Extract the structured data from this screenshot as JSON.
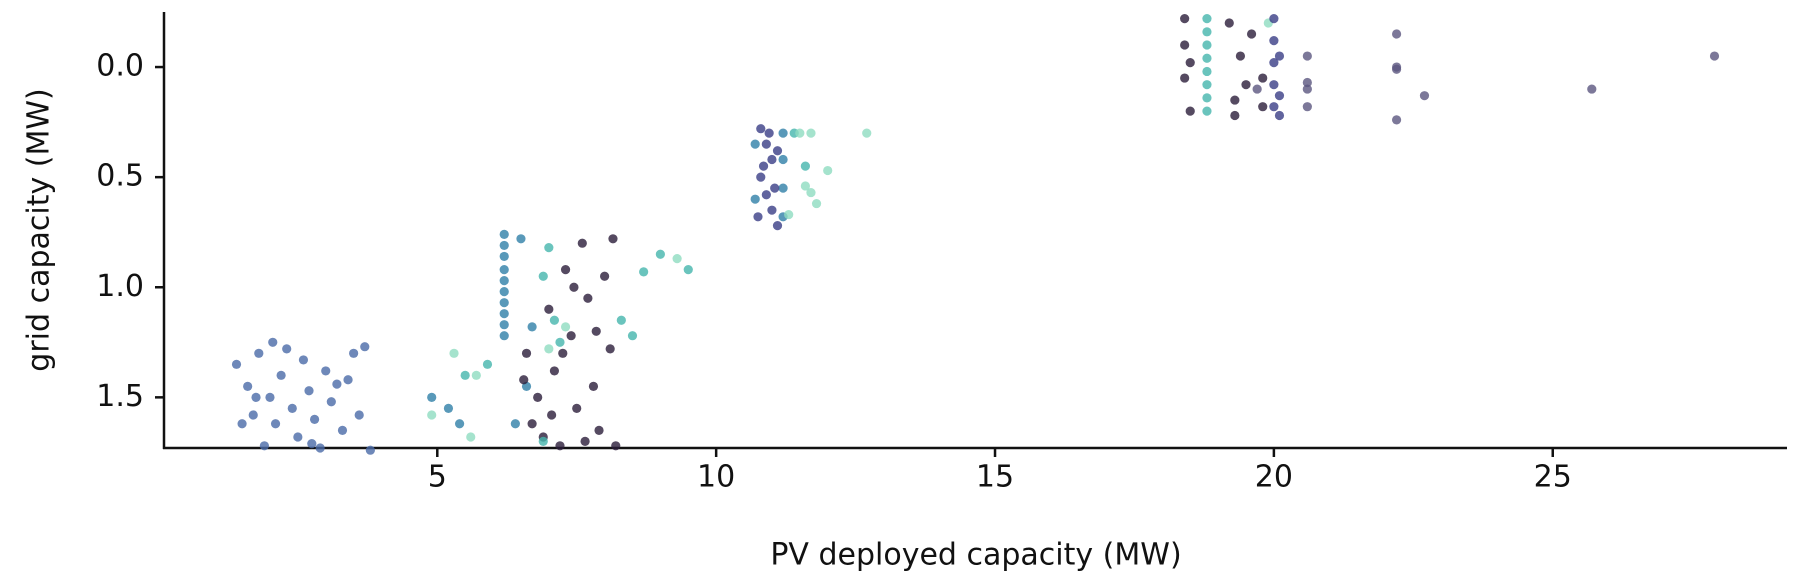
{
  "chart_data": {
    "type": "scatter",
    "xlabel": "PV deployed capacity (MW)",
    "ylabel": "grid capacity (MW)",
    "xlim": [
      0.1,
      29.2
    ],
    "xticks": [
      5,
      10,
      15,
      20,
      25
    ],
    "ylim": [
      -0.25,
      1.73
    ],
    "y_inverted": true,
    "yticks": [
      {
        "value": 0,
        "label": "0.0"
      },
      0.5,
      {
        "value": 1,
        "label": "1.0"
      },
      1.5
    ],
    "series": [
      {
        "color": "#4a6aa8",
        "x": [
          1.4,
          1.6,
          1.7,
          1.8,
          1.9,
          2.0,
          2.1,
          2.2,
          2.3,
          2.4,
          2.5,
          2.6,
          2.7,
          2.8,
          2.9,
          3.0,
          3.1,
          3.3,
          3.4,
          3.5,
          3.6,
          3.7,
          3.8,
          1.5,
          2.05,
          2.75,
          3.2,
          1.75
        ],
        "values": [
          1.35,
          1.45,
          1.58,
          1.3,
          1.72,
          1.5,
          1.62,
          1.4,
          1.28,
          1.55,
          1.68,
          1.33,
          1.47,
          1.6,
          1.73,
          1.38,
          1.52,
          1.65,
          1.42,
          1.3,
          1.58,
          1.27,
          1.74,
          1.62,
          1.25,
          1.71,
          1.44,
          1.5
        ]
      },
      {
        "color": "#2f7fa8",
        "x": [
          6.2,
          6.2,
          6.2,
          6.2,
          6.2,
          6.2,
          6.2,
          6.2,
          6.2,
          6.2,
          11.2,
          11.2,
          11.2,
          11.2,
          10.7,
          10.7,
          6.4,
          6.6,
          5.2,
          4.9,
          5.4,
          6.5,
          6.7
        ],
        "values": [
          0.76,
          0.81,
          0.86,
          0.92,
          0.97,
          1.02,
          1.07,
          1.12,
          1.17,
          1.22,
          0.3,
          0.42,
          0.55,
          0.68,
          0.35,
          0.6,
          1.62,
          1.45,
          1.55,
          1.5,
          1.62,
          0.78,
          1.18
        ]
      },
      {
        "color": "#2b1d3a",
        "x": [
          6.6,
          6.8,
          6.9,
          7.0,
          7.1,
          7.2,
          7.3,
          7.4,
          7.5,
          7.6,
          7.7,
          7.8,
          7.9,
          8.0,
          8.1,
          8.2,
          6.7,
          7.05,
          7.45,
          7.85,
          8.15,
          6.55,
          7.25,
          7.65,
          18.4,
          18.4,
          18.4,
          18.5,
          18.5,
          19.2,
          19.3,
          19.4,
          19.5,
          19.3,
          19.6,
          19.8,
          19.8
        ],
        "values": [
          1.3,
          1.5,
          1.68,
          1.1,
          1.38,
          1.72,
          0.92,
          1.22,
          1.55,
          0.8,
          1.05,
          1.45,
          1.65,
          0.95,
          1.28,
          1.72,
          1.62,
          1.58,
          1.0,
          1.2,
          0.78,
          1.42,
          1.3,
          1.7,
          -0.22,
          -0.1,
          0.05,
          0.2,
          -0.02,
          -0.2,
          0.15,
          -0.05,
          0.08,
          0.22,
          -0.15,
          0.05,
          0.18
        ]
      },
      {
        "color": "#45b5ad",
        "x": [
          18.8,
          18.8,
          18.8,
          18.8,
          18.8,
          18.8,
          18.8,
          18.8,
          7.0,
          7.1,
          7.2,
          6.9,
          8.7,
          9.5,
          9.0,
          8.3,
          8.5,
          11.4,
          11.6,
          5.9,
          5.5,
          6.9
        ],
        "values": [
          -0.22,
          -0.16,
          -0.1,
          -0.04,
          0.02,
          0.08,
          0.14,
          0.2,
          0.82,
          1.15,
          1.25,
          0.95,
          0.93,
          0.92,
          0.85,
          1.15,
          1.22,
          0.3,
          0.45,
          1.35,
          1.4,
          1.7
        ]
      },
      {
        "color": "#8fdcc0",
        "x": [
          11.5,
          11.7,
          12.7,
          12.0,
          11.7,
          11.8,
          11.6,
          11.3,
          5.3,
          5.7,
          4.9,
          5.6,
          7.0,
          9.3,
          7.3,
          19.9
        ],
        "values": [
          0.3,
          0.3,
          0.3,
          0.47,
          0.57,
          0.62,
          0.54,
          0.67,
          1.3,
          1.4,
          1.58,
          1.68,
          1.28,
          0.87,
          1.18,
          -0.2
        ]
      },
      {
        "color": "#3a3d86",
        "x": [
          10.8,
          10.9,
          11.0,
          10.8,
          10.9,
          11.0,
          11.1,
          10.85,
          10.95,
          11.05,
          10.75,
          11.1,
          20.0,
          20.0,
          20.0,
          20.0,
          20.0,
          20.1,
          20.1,
          20.1
        ],
        "values": [
          0.28,
          0.35,
          0.42,
          0.5,
          0.58,
          0.65,
          0.72,
          0.45,
          0.3,
          0.55,
          0.68,
          0.38,
          -0.22,
          -0.12,
          -0.02,
          0.08,
          0.18,
          0.22,
          -0.05,
          0.13
        ]
      },
      {
        "color": "#5b5680",
        "x": [
          20.6,
          20.6,
          20.6,
          20.6,
          22.2,
          22.2,
          22.2,
          22.2,
          22.7,
          25.7,
          27.9,
          19.7
        ],
        "values": [
          -0.05,
          0.1,
          0.18,
          0.07,
          -0.15,
          0.0,
          0.24,
          0.01,
          0.13,
          0.1,
          -0.05,
          0.1
        ]
      }
    ]
  }
}
